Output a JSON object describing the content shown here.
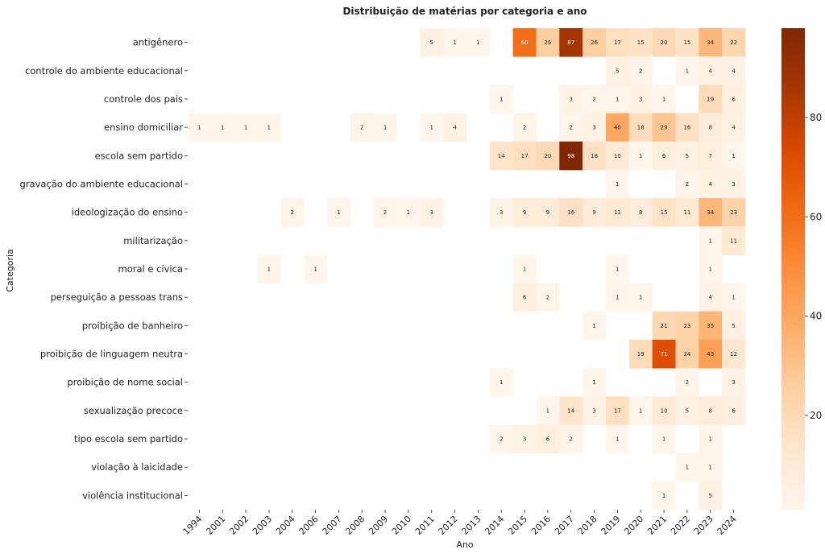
{
  "chart_data": {
    "type": "heatmap",
    "title": "Distribuição de matérias por categoria e ano",
    "xlabel": "Ano",
    "ylabel": "Categoria",
    "colormap": "Oranges",
    "colors": {
      "low": "#fff5eb",
      "high": "#7f2704"
    },
    "vmin": 1,
    "vmax": 98,
    "colorbar_ticks": [
      20,
      40,
      60,
      80
    ],
    "x": [
      "1994",
      "2001",
      "2002",
      "2003",
      "2004",
      "2006",
      "2007",
      "2008",
      "2009",
      "2010",
      "2011",
      "2012",
      "2013",
      "2014",
      "2015",
      "2016",
      "2017",
      "2018",
      "2019",
      "2020",
      "2021",
      "2022",
      "2023",
      "2024"
    ],
    "y": [
      "antigênero",
      "controle do ambiente educacional",
      "controle dos pais",
      "ensino domiciliar",
      "escola sem partido",
      "gravação do ambiente educacional",
      "ideologização do ensino",
      "militarização",
      "moral e cívica",
      "perseguição a pessoas trans",
      "proibição de banheiro",
      "proibição de linguagem neutra",
      "proibição de nome social",
      "sexualização precoce",
      "tipo escola sem partido",
      "violação à laicidade",
      "violência institucional"
    ],
    "values": [
      [
        null,
        null,
        null,
        null,
        null,
        null,
        null,
        null,
        null,
        null,
        5,
        1,
        1,
        null,
        60,
        26,
        87,
        26,
        17,
        15,
        20,
        15,
        34,
        22
      ],
      [
        null,
        null,
        null,
        null,
        null,
        null,
        null,
        null,
        null,
        null,
        null,
        null,
        null,
        null,
        null,
        null,
        null,
        null,
        5,
        2,
        null,
        1,
        4,
        4
      ],
      [
        null,
        null,
        null,
        null,
        null,
        null,
        null,
        null,
        null,
        null,
        null,
        null,
        null,
        1,
        null,
        null,
        3,
        2,
        1,
        3,
        1,
        null,
        19,
        6
      ],
      [
        1,
        1,
        1,
        1,
        null,
        null,
        null,
        2,
        1,
        null,
        1,
        4,
        null,
        null,
        2,
        null,
        2,
        3,
        40,
        18,
        29,
        16,
        8,
        4
      ],
      [
        null,
        null,
        null,
        null,
        null,
        null,
        null,
        null,
        null,
        null,
        null,
        null,
        null,
        14,
        17,
        20,
        98,
        16,
        10,
        1,
        6,
        5,
        7,
        1
      ],
      [
        null,
        null,
        null,
        null,
        null,
        null,
        null,
        null,
        null,
        null,
        null,
        null,
        null,
        null,
        null,
        null,
        null,
        null,
        1,
        null,
        null,
        2,
        4,
        3
      ],
      [
        null,
        null,
        null,
        null,
        2,
        null,
        1,
        null,
        2,
        1,
        3,
        null,
        null,
        3,
        9,
        9,
        16,
        9,
        11,
        8,
        15,
        11,
        34,
        23
      ],
      [
        null,
        null,
        null,
        null,
        null,
        null,
        null,
        null,
        null,
        null,
        null,
        null,
        null,
        null,
        null,
        null,
        null,
        null,
        null,
        null,
        null,
        null,
        1,
        11
      ],
      [
        null,
        null,
        null,
        1,
        null,
        1,
        null,
        null,
        null,
        null,
        null,
        null,
        null,
        null,
        1,
        null,
        null,
        null,
        1,
        null,
        null,
        null,
        1,
        null
      ],
      [
        null,
        null,
        null,
        null,
        null,
        null,
        null,
        null,
        null,
        null,
        null,
        null,
        null,
        null,
        6,
        2,
        null,
        null,
        1,
        1,
        null,
        null,
        4,
        1
      ],
      [
        null,
        null,
        null,
        null,
        null,
        null,
        null,
        null,
        null,
        null,
        null,
        null,
        null,
        null,
        null,
        null,
        null,
        1,
        null,
        null,
        21,
        23,
        35,
        5
      ],
      [
        null,
        null,
        null,
        null,
        null,
        null,
        null,
        null,
        null,
        null,
        null,
        null,
        null,
        null,
        null,
        null,
        null,
        null,
        null,
        19,
        71,
        24,
        43,
        12
      ],
      [
        null,
        null,
        null,
        null,
        null,
        null,
        null,
        null,
        null,
        null,
        null,
        null,
        null,
        1,
        null,
        null,
        null,
        1,
        null,
        null,
        null,
        2,
        null,
        3
      ],
      [
        null,
        null,
        null,
        null,
        null,
        null,
        null,
        null,
        null,
        null,
        null,
        null,
        null,
        null,
        null,
        1,
        14,
        3,
        17,
        1,
        10,
        5,
        8,
        6
      ],
      [
        null,
        null,
        null,
        null,
        null,
        null,
        null,
        null,
        null,
        null,
        null,
        null,
        null,
        2,
        3,
        6,
        2,
        null,
        1,
        null,
        1,
        null,
        1,
        null
      ],
      [
        null,
        null,
        null,
        null,
        null,
        null,
        null,
        null,
        null,
        null,
        null,
        null,
        null,
        null,
        null,
        null,
        null,
        null,
        null,
        null,
        null,
        1,
        1,
        null
      ],
      [
        null,
        null,
        null,
        null,
        null,
        null,
        null,
        null,
        null,
        null,
        null,
        null,
        null,
        null,
        null,
        null,
        null,
        null,
        null,
        null,
        1,
        null,
        5,
        null
      ]
    ]
  }
}
